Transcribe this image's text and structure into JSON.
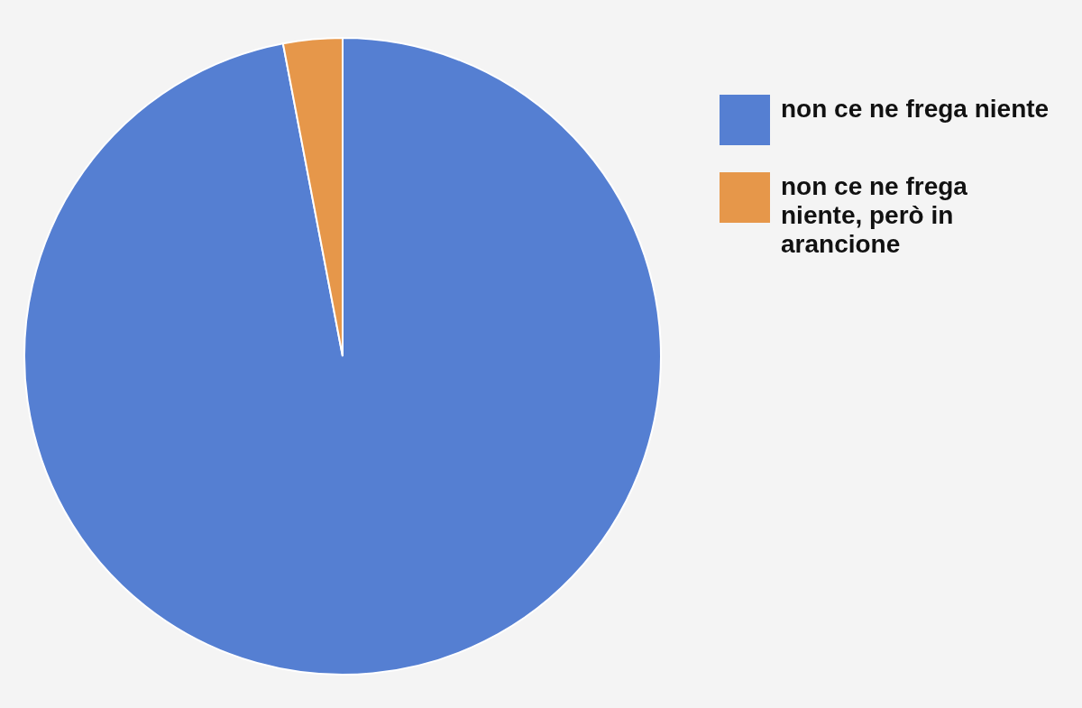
{
  "chart_data": {
    "type": "pie",
    "categories": [
      "non ce ne frega niente",
      "non ce ne frega niente, però in arancione"
    ],
    "values": [
      97,
      3
    ],
    "colors": [
      "#557fd2",
      "#e6974a"
    ],
    "legend": "right"
  }
}
